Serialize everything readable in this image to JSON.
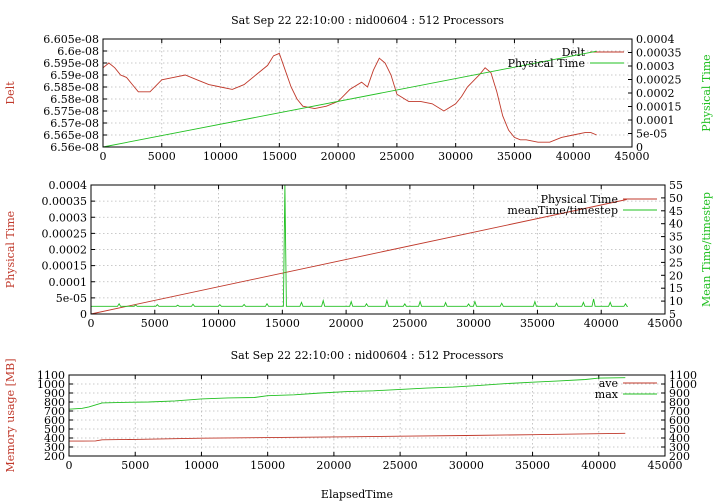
{
  "chart_data": [
    {
      "type": "line",
      "title": "Sat Sep 22 22:10:00 : nid00604 : 512 Processors",
      "xlabel": "",
      "ylabel": "Delt",
      "y2label": "Physical Time",
      "xlim": [
        0,
        45000
      ],
      "ylim": [
        6.56e-08,
        6.605e-08
      ],
      "y2lim": [
        0,
        0.0004
      ],
      "xticks": [
        "0",
        "5000",
        "10000",
        "15000",
        "20000",
        "25000",
        "30000",
        "35000",
        "40000",
        "45000"
      ],
      "yticks": [
        "6.56e-08",
        "6.565e-08",
        "6.57e-08",
        "6.575e-08",
        "6.58e-08",
        "6.585e-08",
        "6.59e-08",
        "6.595e-08",
        "6.6e-08",
        "6.605e-08"
      ],
      "y2ticks": [
        "0",
        "5e-05",
        "0.0001",
        "0.00015",
        "0.0002",
        "0.00025",
        "0.0003",
        "0.00035",
        "0.0004"
      ],
      "grid": true,
      "legend_position": "top-right",
      "series": [
        {
          "name": "Delt",
          "axis": "y",
          "color": "#c0392b",
          "x": [
            0,
            500,
            1000,
            1500,
            2000,
            2500,
            3000,
            4000,
            5000,
            6000,
            7000,
            8000,
            9000,
            10000,
            11000,
            12000,
            13000,
            14000,
            14500,
            15000,
            15500,
            16000,
            16500,
            17000,
            18000,
            19000,
            20000,
            21000,
            22000,
            22500,
            23000,
            23500,
            24000,
            24500,
            25000,
            26000,
            27000,
            28000,
            29000,
            30000,
            30500,
            31000,
            32000,
            32500,
            33000,
            33500,
            34000,
            34500,
            35000,
            35500,
            36000,
            37000,
            38000,
            39000,
            40000,
            41000,
            41500,
            42000
          ],
          "y": [
            6.593e-08,
            6.595e-08,
            6.593e-08,
            6.59e-08,
            6.589e-08,
            6.586e-08,
            6.583e-08,
            6.583e-08,
            6.588e-08,
            6.589e-08,
            6.59e-08,
            6.588e-08,
            6.586e-08,
            6.585e-08,
            6.584e-08,
            6.586e-08,
            6.59e-08,
            6.594e-08,
            6.598e-08,
            6.599e-08,
            6.592e-08,
            6.585e-08,
            6.58e-08,
            6.577e-08,
            6.576e-08,
            6.577e-08,
            6.579e-08,
            6.584e-08,
            6.587e-08,
            6.585e-08,
            6.592e-08,
            6.597e-08,
            6.595e-08,
            6.59e-08,
            6.582e-08,
            6.579e-08,
            6.579e-08,
            6.578e-08,
            6.575e-08,
            6.578e-08,
            6.581e-08,
            6.585e-08,
            6.59e-08,
            6.593e-08,
            6.591e-08,
            6.583e-08,
            6.573e-08,
            6.567e-08,
            6.564e-08,
            6.563e-08,
            6.563e-08,
            6.562e-08,
            6.562e-08,
            6.564e-08,
            6.565e-08,
            6.566e-08,
            6.566e-08,
            6.565e-08
          ]
        },
        {
          "name": "Physical Time",
          "axis": "y2",
          "color": "#22c022",
          "x": [
            0,
            42000
          ],
          "y": [
            0,
            0.000355
          ]
        }
      ]
    },
    {
      "type": "line",
      "title": "",
      "xlabel": "",
      "ylabel": "Physical Time",
      "y2label": "Mean Time/timestep",
      "xlim": [
        0,
        45000
      ],
      "ylim": [
        0,
        0.0004
      ],
      "y2lim": [
        5,
        55
      ],
      "xticks": [
        "0",
        "5000",
        "10000",
        "15000",
        "20000",
        "25000",
        "30000",
        "35000",
        "40000",
        "45000"
      ],
      "yticks": [
        "0",
        "5e-05",
        "0.0001",
        "0.00015",
        "0.0002",
        "0.00025",
        "0.0003",
        "0.00035",
        "0.0004"
      ],
      "y2ticks": [
        "5",
        "10",
        "15",
        "20",
        "25",
        "30",
        "35",
        "40",
        "45",
        "50",
        "55"
      ],
      "grid": true,
      "legend_position": "top-right",
      "series": [
        {
          "name": "Physical Time",
          "axis": "y",
          "color": "#c0392b",
          "x": [
            0,
            42000
          ],
          "y": [
            0,
            0.000355
          ]
        },
        {
          "name": "meanTime/timestep",
          "axis": "y2",
          "color": "#22c022",
          "baseline": 8.0,
          "spikes": [
            [
              2200,
              9.0
            ],
            [
              3500,
              8.5
            ],
            [
              5200,
              8.6
            ],
            [
              6800,
              8.4
            ],
            [
              8000,
              8.8
            ],
            [
              10100,
              8.6
            ],
            [
              12000,
              8.7
            ],
            [
              13800,
              9.0
            ],
            [
              15200,
              55.0
            ],
            [
              16500,
              9.5
            ],
            [
              18200,
              10.2
            ],
            [
              20400,
              9.8
            ],
            [
              21600,
              9.0
            ],
            [
              23200,
              10.2
            ],
            [
              24600,
              8.9
            ],
            [
              25800,
              9.8
            ],
            [
              27800,
              9.4
            ],
            [
              29600,
              8.9
            ],
            [
              30100,
              9.8
            ],
            [
              32200,
              9.2
            ],
            [
              34800,
              9.8
            ],
            [
              36500,
              9.2
            ],
            [
              38600,
              9.5
            ],
            [
              39400,
              10.8
            ],
            [
              40700,
              9.5
            ],
            [
              41900,
              9.0
            ]
          ]
        }
      ]
    },
    {
      "type": "line",
      "title": "Sat Sep 22 22:10:00 : nid00604 : 512 Processors",
      "xlabel": "ElapsedTime",
      "ylabel": "Memory usage [MB]",
      "y2label": "",
      "xlim": [
        0,
        45000
      ],
      "ylim": [
        200,
        1100
      ],
      "y2lim": [
        200,
        1100
      ],
      "xticks": [
        "0",
        "5000",
        "10000",
        "15000",
        "20000",
        "25000",
        "30000",
        "35000",
        "40000",
        "45000"
      ],
      "yticks": [
        "200",
        "300",
        "400",
        "500",
        "600",
        "700",
        "800",
        "900",
        "1000",
        "1100"
      ],
      "y2ticks": [
        "200",
        "300",
        "400",
        "500",
        "600",
        "700",
        "800",
        "900",
        "1000",
        "1100"
      ],
      "grid": true,
      "legend_position": "top-right",
      "series": [
        {
          "name": "ave",
          "axis": "y",
          "color": "#c0392b",
          "x": [
            0,
            1000,
            2000,
            2500,
            5000,
            10000,
            15000,
            20000,
            25000,
            30000,
            35000,
            40000,
            42000
          ],
          "y": [
            365,
            365,
            368,
            380,
            385,
            398,
            405,
            412,
            420,
            428,
            437,
            448,
            452
          ]
        },
        {
          "name": "max",
          "axis": "y",
          "color": "#22c022",
          "x": [
            0,
            1000,
            1500,
            2500,
            4000,
            6000,
            8000,
            10000,
            12000,
            14000,
            15000,
            17000,
            19000,
            21000,
            23000,
            25000,
            27000,
            29000,
            31000,
            33000,
            35000,
            37000,
            39000,
            40000,
            42000
          ],
          "y": [
            720,
            730,
            745,
            790,
            795,
            800,
            812,
            835,
            845,
            850,
            870,
            880,
            900,
            915,
            925,
            940,
            955,
            965,
            985,
            1005,
            1020,
            1035,
            1050,
            1065,
            1070
          ]
        }
      ]
    }
  ]
}
